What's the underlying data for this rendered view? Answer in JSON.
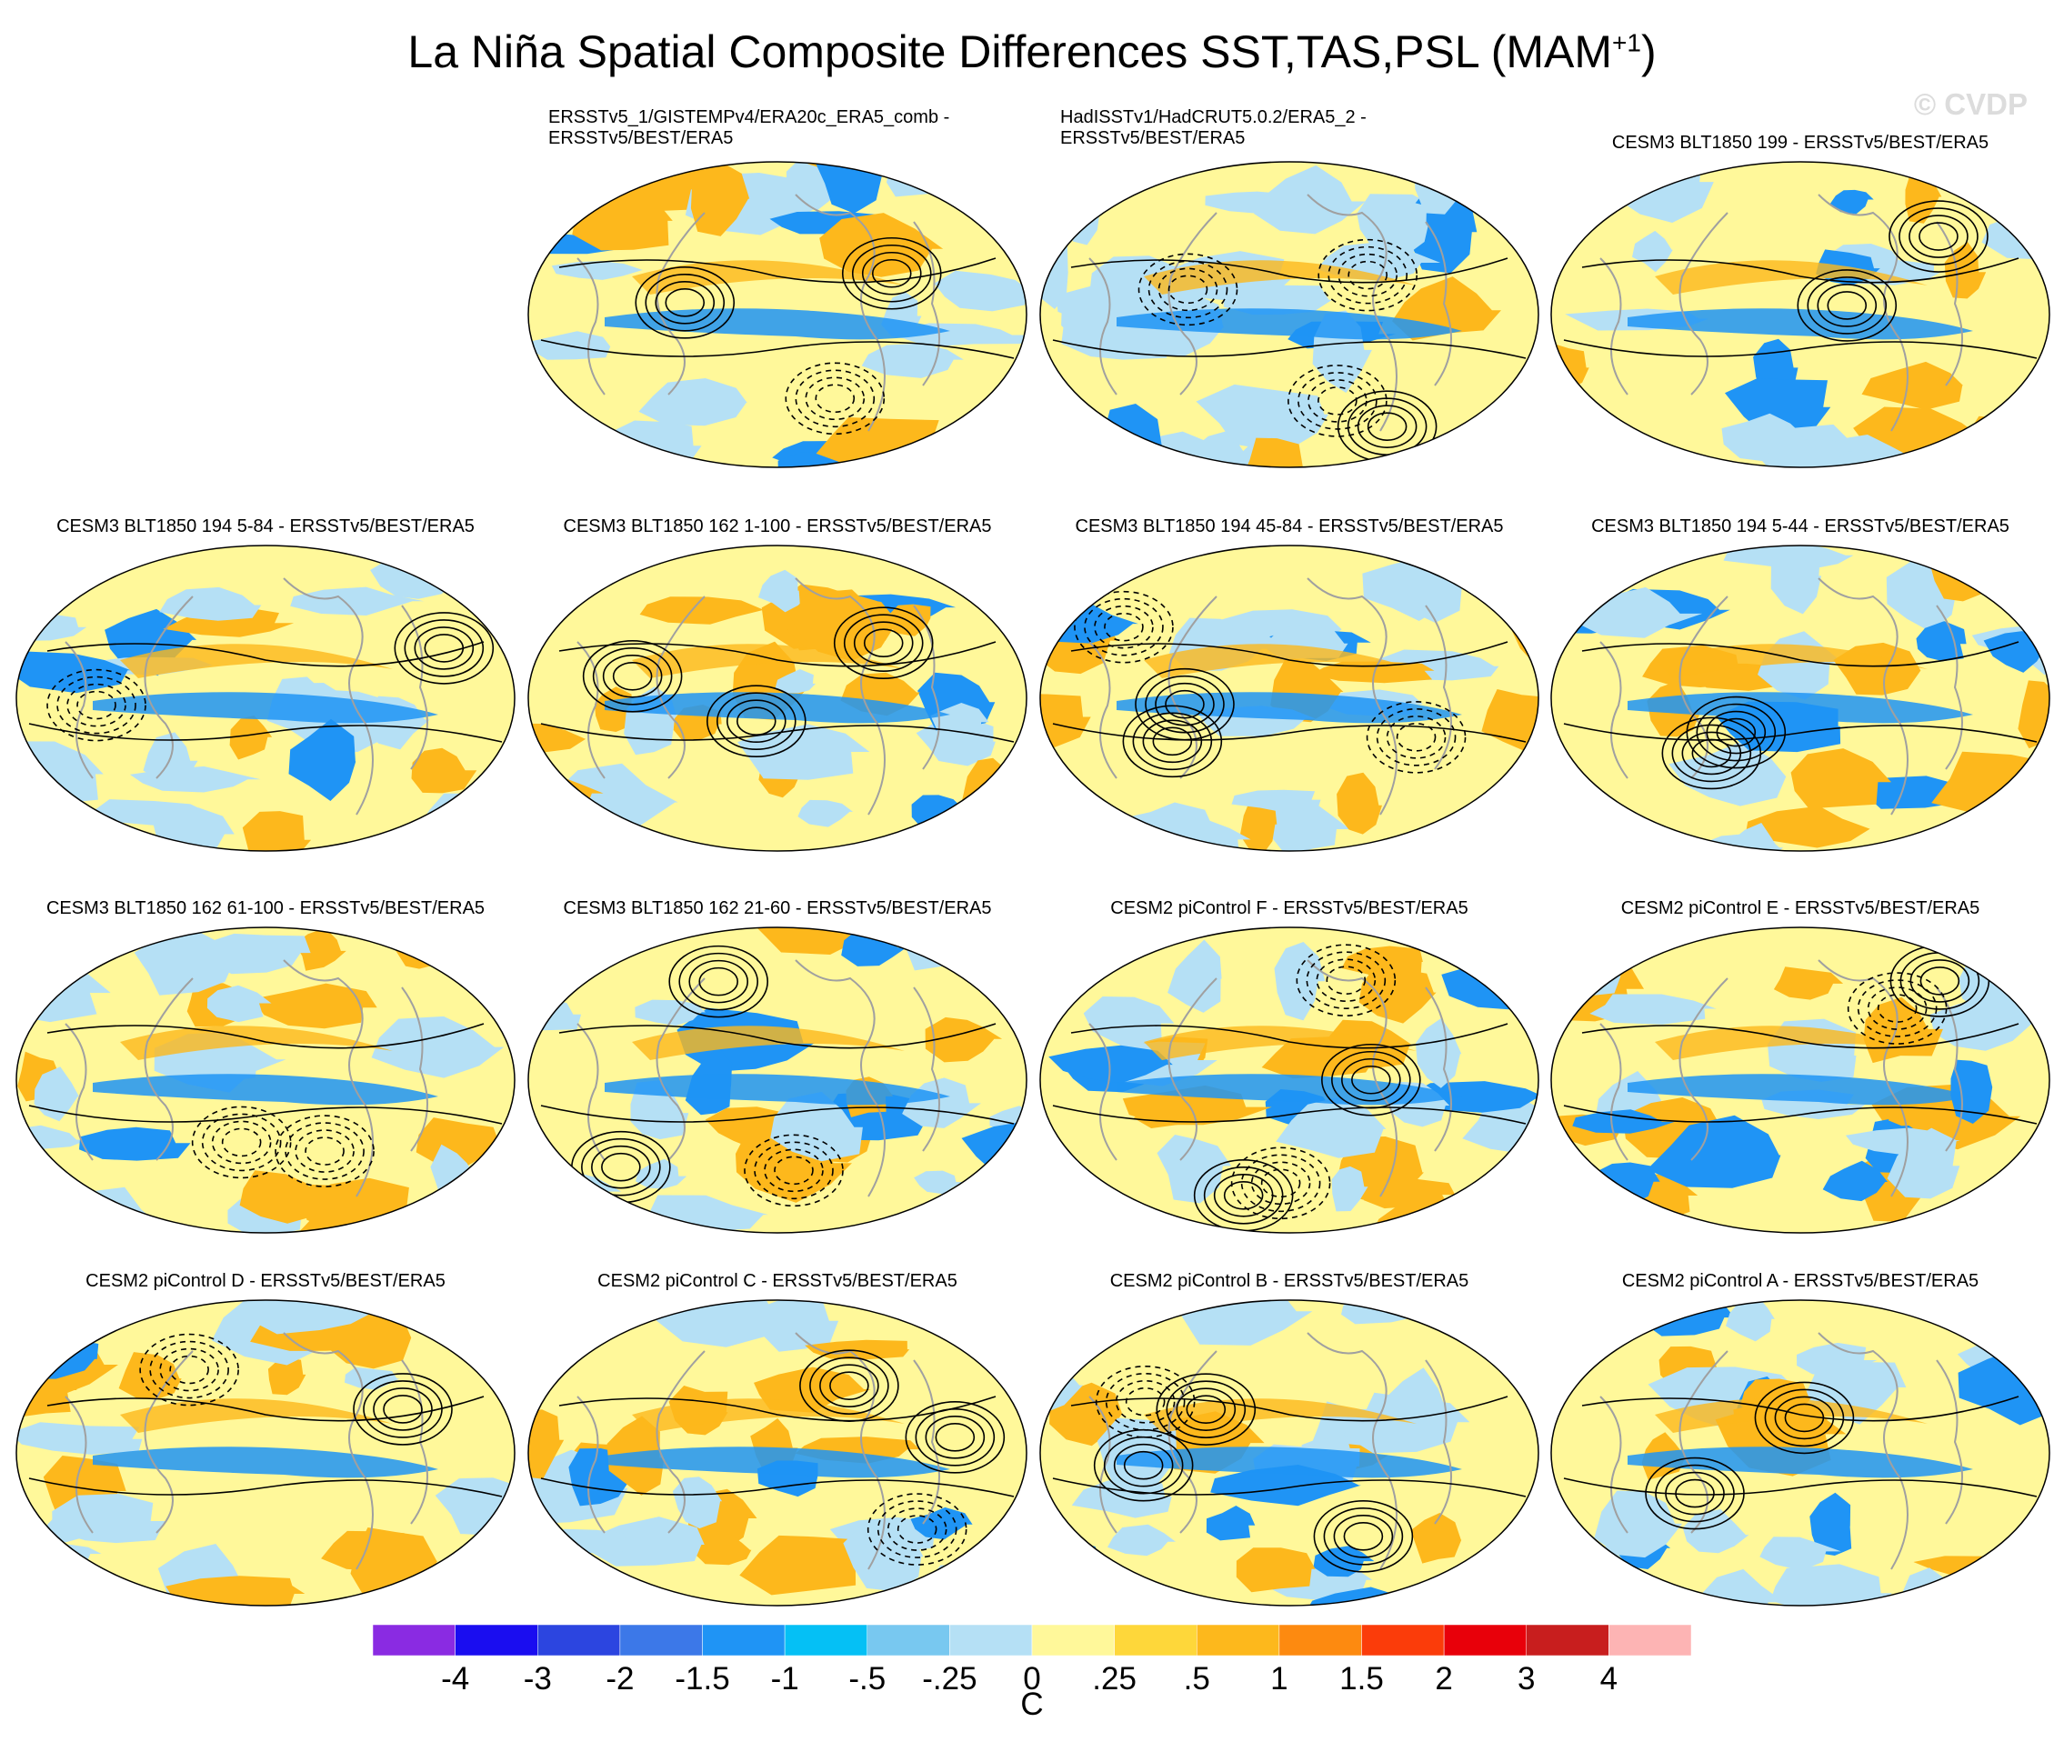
{
  "title": "La Niña Spatial Composite Differences SST,TAS,PSL (MAM",
  "title_sup": "+1",
  "title_tail": ")",
  "watermark": "© CVDP",
  "panels": [
    {
      "id": "p01",
      "row": 0,
      "col": 1,
      "title": "ERSSTv5_1/GISTEMPv4/ERA20c_ERA5_comb -\nERSSTv5/BEST/ERA5",
      "align": "left"
    },
    {
      "id": "p02",
      "row": 0,
      "col": 2,
      "title": "HadISSTv1/HadCRUT5.0.2/ERA5_2 -\nERSSTv5/BEST/ERA5",
      "align": "left"
    },
    {
      "id": "p03",
      "row": 0,
      "col": 3,
      "title": "CESM3 BLT1850 199 - ERSSTv5/BEST/ERA5",
      "align": "center"
    },
    {
      "id": "p04",
      "row": 1,
      "col": 0,
      "title": "CESM3 BLT1850 194 5-84 - ERSSTv5/BEST/ERA5",
      "align": "center"
    },
    {
      "id": "p05",
      "row": 1,
      "col": 1,
      "title": "CESM3 BLT1850 162 1-100 - ERSSTv5/BEST/ERA5",
      "align": "center"
    },
    {
      "id": "p06",
      "row": 1,
      "col": 2,
      "title": "CESM3 BLT1850 194 45-84 - ERSSTv5/BEST/ERA5",
      "align": "center"
    },
    {
      "id": "p07",
      "row": 1,
      "col": 3,
      "title": "CESM3 BLT1850 194 5-44 - ERSSTv5/BEST/ERA5",
      "align": "center"
    },
    {
      "id": "p08",
      "row": 2,
      "col": 0,
      "title": "CESM3 BLT1850 162 61-100 - ERSSTv5/BEST/ERA5",
      "align": "center"
    },
    {
      "id": "p09",
      "row": 2,
      "col": 1,
      "title": "CESM3 BLT1850 162 21-60 - ERSSTv5/BEST/ERA5",
      "align": "center"
    },
    {
      "id": "p10",
      "row": 2,
      "col": 2,
      "title": "CESM2 piControl F - ERSSTv5/BEST/ERA5",
      "align": "center"
    },
    {
      "id": "p11",
      "row": 2,
      "col": 3,
      "title": "CESM2 piControl E - ERSSTv5/BEST/ERA5",
      "align": "center"
    },
    {
      "id": "p12",
      "row": 3,
      "col": 0,
      "title": "CESM2 piControl D - ERSSTv5/BEST/ERA5",
      "align": "center"
    },
    {
      "id": "p13",
      "row": 3,
      "col": 1,
      "title": "CESM2 piControl C - ERSSTv5/BEST/ERA5",
      "align": "center"
    },
    {
      "id": "p14",
      "row": 3,
      "col": 2,
      "title": "CESM2 piControl B - ERSSTv5/BEST/ERA5",
      "align": "center"
    },
    {
      "id": "p15",
      "row": 3,
      "col": 3,
      "title": "CESM2 piControl A - ERSSTv5/BEST/ERA5",
      "align": "center"
    }
  ],
  "colorbar": {
    "unit": "C",
    "labels": [
      "-4",
      "-3",
      "-2",
      "-1.5",
      "-1",
      "-.5",
      "-.25",
      "0",
      ".25",
      ".5",
      "1",
      "1.5",
      "2",
      "3",
      "4"
    ],
    "colors": [
      "#8a2be2",
      "#1a0df0",
      "#2c45e0",
      "#3c78e8",
      "#1f94f5",
      "#05c0f5",
      "#78c8f0",
      "#b5e0f5",
      "#fff89a",
      "#fed73a",
      "#fdb81c",
      "#fd8a10",
      "#fb3c0a",
      "#e8000a",
      "#c81e1e",
      "#fdb4b4"
    ]
  },
  "map_palette": {
    "ocean_warm": "#fdb81c",
    "ocean_neutral": "#fff89a",
    "ocean_cool": "#b5e0f5",
    "ocean_cold": "#1f94f5",
    "coast": "#a0a0a0",
    "contour": "#000000"
  }
}
